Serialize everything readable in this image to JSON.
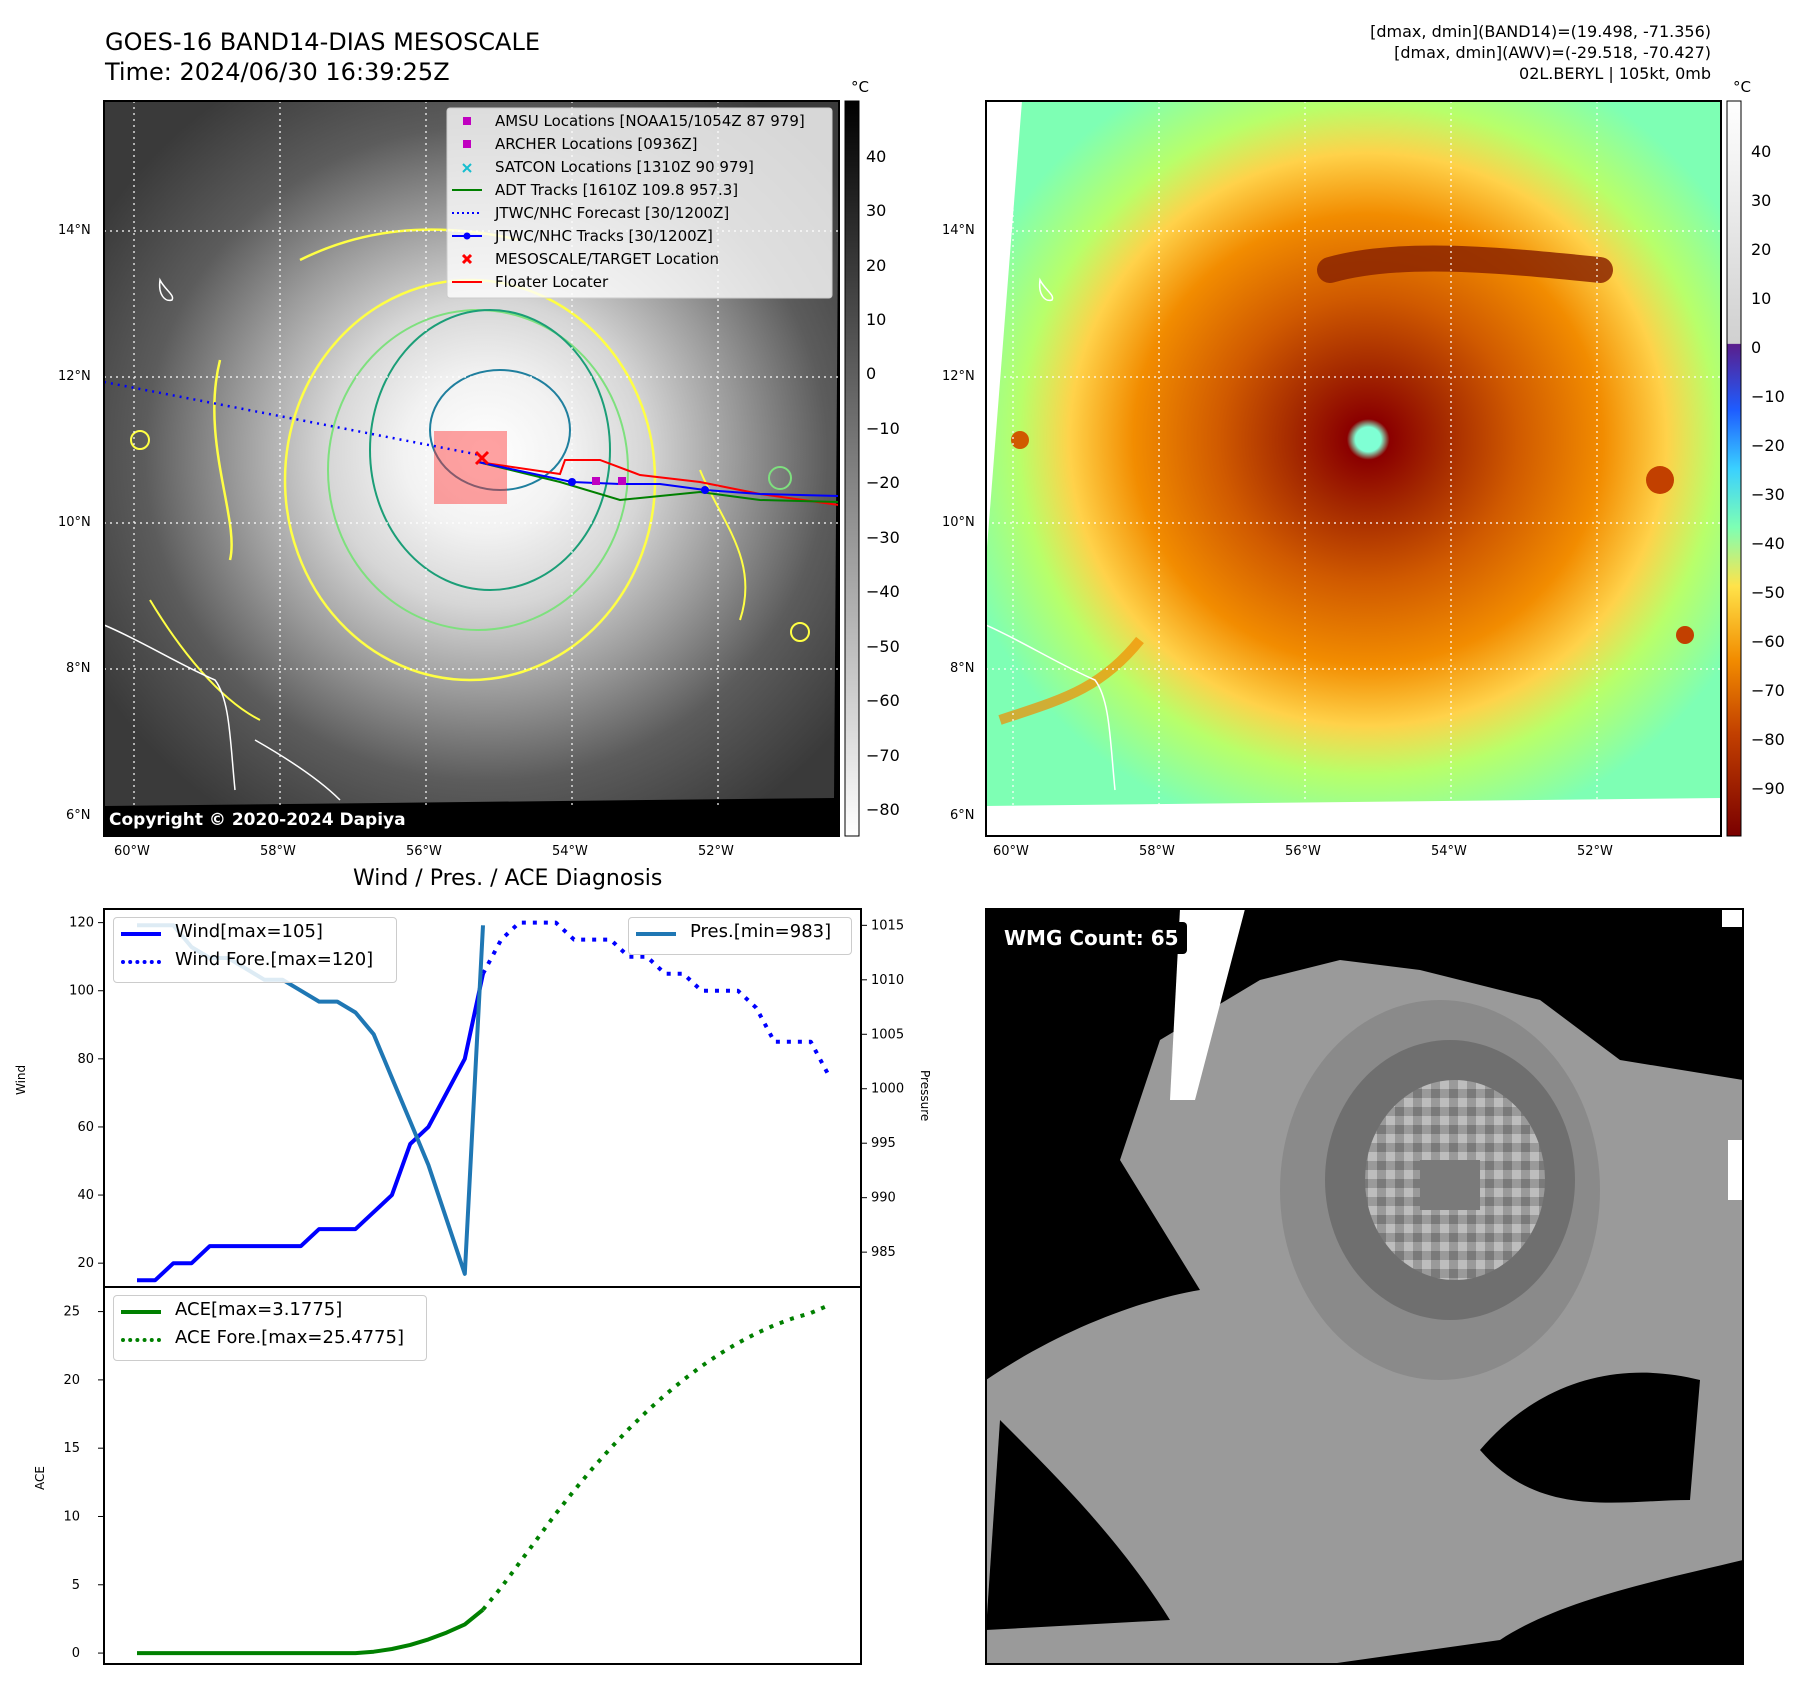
{
  "header": {
    "title_line1": "GOES-16 BAND14-DIAS MESOSCALE",
    "title_line2": "Time: 2024/06/30 16:39:25Z",
    "stats_line1": "[dmax, dmin](BAND14)=(19.498, -71.356)",
    "stats_line2": "[dmax, dmin](AWV)=(-29.518, -70.427)",
    "stats_line3": "02L.BERYL | 105kt, 0mb"
  },
  "maps": {
    "lat_ticks": [
      "14°N",
      "12°N",
      "10°N",
      "8°N",
      "6°N"
    ],
    "lon_ticks": [
      "60°W",
      "58°W",
      "56°W",
      "54°W",
      "52°W"
    ],
    "colorbar_unit": "°C",
    "left_colorbar_ticks": [
      "40",
      "30",
      "20",
      "10",
      "0",
      "−10",
      "−20",
      "−30",
      "−40",
      "−50",
      "−60",
      "−70",
      "−80"
    ],
    "right_colorbar_ticks": [
      "40",
      "30",
      "20",
      "10",
      "0",
      "−10",
      "−20",
      "−30",
      "−40",
      "−50",
      "−60",
      "−70",
      "−80",
      "−90"
    ],
    "copyright": "Copyright © 2020-2024 Dapiya",
    "legend": [
      {
        "label": "AMSU Locations [NOAA15/1054Z 87 979]",
        "marker": "square",
        "color": "#c000c0"
      },
      {
        "label": "ARCHER Locations [0936Z]",
        "marker": "square",
        "color": "#c000c0"
      },
      {
        "label": "SATCON Locations [1310Z 90 979]",
        "marker": "x",
        "color": "#17becf"
      },
      {
        "label": "ADT Tracks [1610Z 109.8 957.3]",
        "marker": "line",
        "color": "#008000"
      },
      {
        "label": "JTWC/NHC Forecast [30/1200Z]",
        "marker": "dotted",
        "color": "#0000ff"
      },
      {
        "label": "JTWC/NHC Tracks [30/1200Z]",
        "marker": "line-dot",
        "color": "#0000ff"
      },
      {
        "label": "MESOSCALE/TARGET Location",
        "marker": "x",
        "color": "#ff0000"
      },
      {
        "label": "Floater Locater",
        "marker": "line",
        "color": "#ff0000"
      }
    ]
  },
  "wmg": {
    "label": "WMG Count: 65"
  },
  "chart_data": [
    {
      "type": "line",
      "title": "Wind / Pres. / ACE Diagnosis",
      "ylabel": "Wind",
      "y2label": "Pressure",
      "ylim": [
        13,
        124
      ],
      "y2lim": [
        981.8,
        1016.5
      ],
      "yticks": [
        20,
        40,
        60,
        80,
        100,
        120
      ],
      "y2ticks": [
        985,
        990,
        995,
        1000,
        1005,
        1010,
        1015
      ],
      "series": [
        {
          "name": "Wind[max=105]",
          "axis": "left",
          "style": "solid",
          "color": "#0000ff",
          "x": [
            0,
            1,
            2,
            3,
            4,
            5,
            6,
            7,
            8,
            9,
            10,
            11,
            12,
            13,
            14,
            15,
            16,
            17,
            18,
            19
          ],
          "values": [
            15,
            15,
            20,
            20,
            25,
            25,
            25,
            25,
            25,
            25,
            30,
            30,
            30,
            35,
            40,
            55,
            60,
            70,
            80,
            105
          ]
        },
        {
          "name": "Wind Fore.[max=120]",
          "axis": "left",
          "style": "dotted",
          "color": "#0000ff",
          "x": [
            19,
            20,
            21,
            22,
            23,
            24,
            25,
            26,
            27,
            28,
            29,
            30,
            31,
            32,
            33,
            34,
            35,
            36,
            37,
            38
          ],
          "values": [
            105,
            115,
            120,
            120,
            120,
            115,
            115,
            115,
            110,
            110,
            105,
            105,
            100,
            100,
            100,
            95,
            85,
            85,
            85,
            75
          ]
        },
        {
          "name": "Pres.[min=983]",
          "axis": "right",
          "style": "solid",
          "color": "#1f77b4",
          "x": [
            0,
            1,
            2,
            3,
            4,
            5,
            6,
            7,
            8,
            9,
            10,
            11,
            12,
            13,
            14,
            15,
            16,
            17,
            18,
            19
          ],
          "values": [
            1015,
            1015,
            1015,
            1013,
            1012,
            1012,
            1011,
            1010,
            1010,
            1009,
            1008,
            1008,
            1007,
            1005,
            1001,
            997,
            993,
            988,
            983,
            1015
          ]
        }
      ]
    },
    {
      "type": "line",
      "ylabel": "ACE",
      "ylim": [
        -0.8,
        26.8
      ],
      "yticks": [
        0,
        5,
        10,
        15,
        20,
        25
      ],
      "series": [
        {
          "name": "ACE[max=3.1775]",
          "style": "solid",
          "color": "#008000",
          "x": [
            0,
            1,
            2,
            3,
            4,
            5,
            6,
            7,
            8,
            9,
            10,
            11,
            12,
            13,
            14,
            15,
            16,
            17,
            18,
            19
          ],
          "values": [
            0,
            0,
            0,
            0,
            0,
            0,
            0,
            0,
            0,
            0,
            0,
            0,
            0,
            0.1,
            0.3,
            0.6,
            1.0,
            1.5,
            2.1,
            3.1775
          ]
        },
        {
          "name": "ACE Fore.[max=25.4775]",
          "style": "dotted",
          "color": "#008000",
          "x": [
            19,
            20,
            21,
            22,
            23,
            24,
            25,
            26,
            27,
            28,
            29,
            30,
            31,
            32,
            33,
            34,
            35,
            36,
            37,
            38
          ],
          "values": [
            3.18,
            4.8,
            6.6,
            8.4,
            10.2,
            11.9,
            13.5,
            15.0,
            16.4,
            17.7,
            18.9,
            20.0,
            21.0,
            21.9,
            22.7,
            23.4,
            24.0,
            24.5,
            24.9,
            25.4775
          ]
        }
      ]
    }
  ]
}
